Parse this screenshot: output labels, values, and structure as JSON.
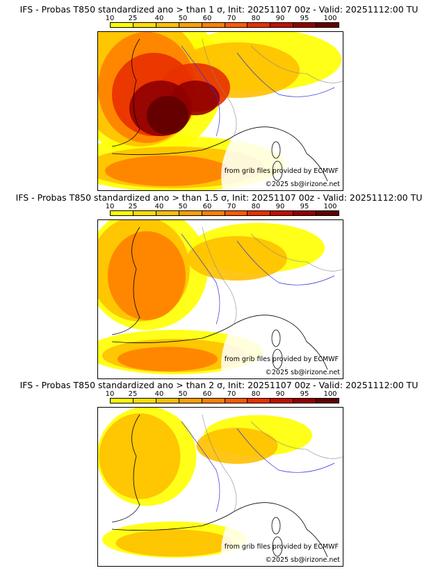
{
  "scale": {
    "labels": [
      "10",
      "25",
      "40",
      "50",
      "60",
      "70",
      "80",
      "90",
      "95",
      "100"
    ],
    "colors": [
      "#ffff00",
      "#ffdd00",
      "#ffc000",
      "#ffa000",
      "#ff8000",
      "#ff5a00",
      "#e83000",
      "#c01000",
      "#900000",
      "#600000"
    ]
  },
  "panels": [
    {
      "title": "IFS - Probas T850  standardized ano > than 1 σ, Init: 20251107 00z - Valid: 20251112:00 TU",
      "credit_source": "from grib files provided by ECMWF",
      "credit_site": "©2025 sb@irizone.net",
      "intensity": 1.0
    },
    {
      "title": "IFS - Probas T850  standardized ano > than 1.5 σ, Init: 20251107 00z - Valid: 20251112:00 TU",
      "credit_source": "from grib files provided by ECMWF",
      "credit_site": "©2025 sb@irizone.net",
      "intensity": 0.6
    },
    {
      "title": "IFS - Probas T850  standardized ano > than 2 σ, Init: 20251107 00z - Valid: 20251112:00 TU",
      "credit_source": "from grib files provided by ECMWF",
      "credit_site": "©2025 sb@irizone.net",
      "intensity": 0.3
    }
  ]
}
